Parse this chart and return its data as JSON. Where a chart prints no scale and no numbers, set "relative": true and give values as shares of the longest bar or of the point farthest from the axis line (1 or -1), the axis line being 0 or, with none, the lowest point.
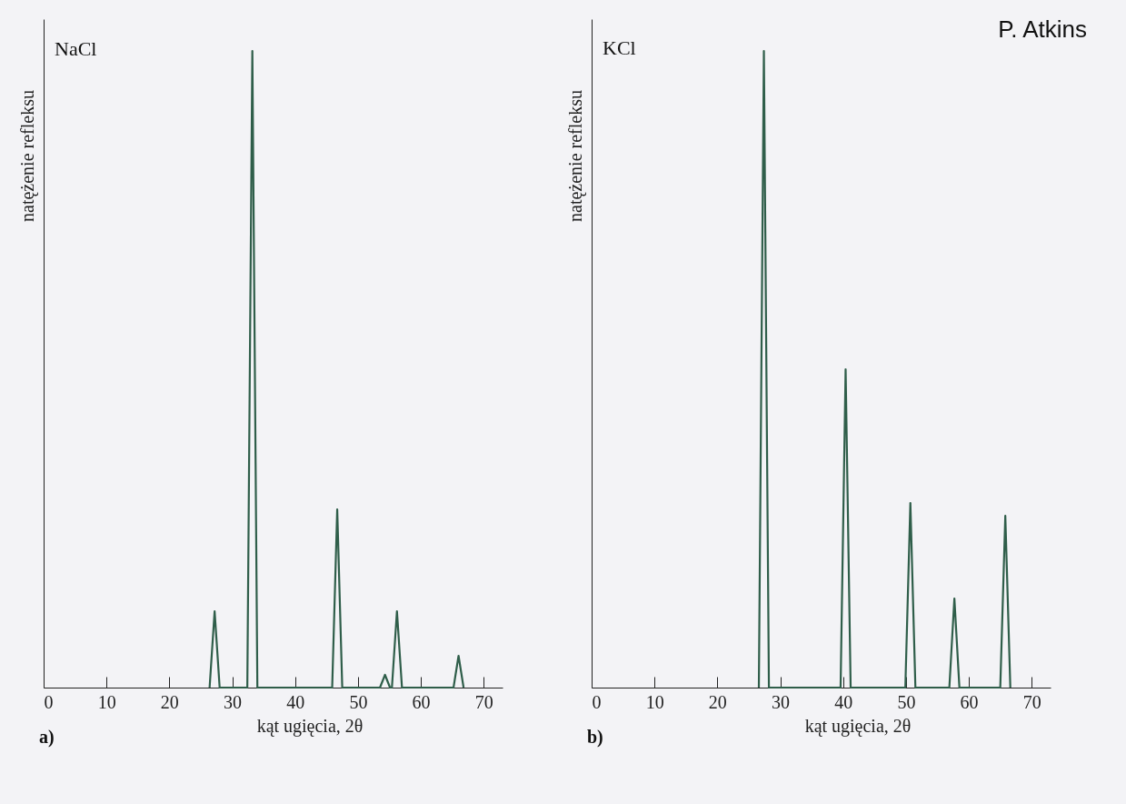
{
  "chart_data": [
    {
      "type": "line",
      "title": "NaCl",
      "xlabel": "kąt ugięcia, 2θ",
      "ylabel": "natężenie refleksu",
      "relative": true,
      "color": "#2f5e4a",
      "xlim": [
        0,
        73
      ],
      "xticks": [
        0,
        10,
        20,
        30,
        40,
        50,
        60,
        70
      ],
      "annotations": [
        "a)"
      ],
      "x": [
        26.4,
        27.2,
        28.0,
        32.4,
        33.2,
        34.0,
        45.9,
        46.7,
        47.5,
        53.5,
        54.3,
        55.1,
        55.4,
        56.2,
        57.0,
        65.2,
        66.0,
        66.8
      ],
      "values": [
        0,
        0.12,
        0,
        0,
        1,
        0,
        0,
        0.28,
        0,
        0,
        0.02,
        0,
        0,
        0.12,
        0,
        0,
        0.05,
        0
      ]
    },
    {
      "type": "line",
      "title": "KCl",
      "xlabel": "kąt ugięcia, 2θ",
      "ylabel": "natężenie refleksu",
      "relative": true,
      "color": "#2f5e4a",
      "xlim": [
        0,
        73
      ],
      "xticks": [
        0,
        10,
        20,
        30,
        40,
        50,
        60,
        70
      ],
      "annotations": [
        "b)",
        "P. Atkins"
      ],
      "x": [
        26.6,
        27.4,
        28.2,
        39.6,
        40.4,
        41.2,
        49.9,
        50.7,
        51.5,
        56.9,
        57.7,
        58.5,
        65.0,
        65.8,
        66.6
      ],
      "values": [
        0,
        1,
        0,
        0,
        0.5,
        0,
        0,
        0.29,
        0,
        0,
        0.14,
        0,
        0,
        0.27,
        0
      ]
    }
  ]
}
